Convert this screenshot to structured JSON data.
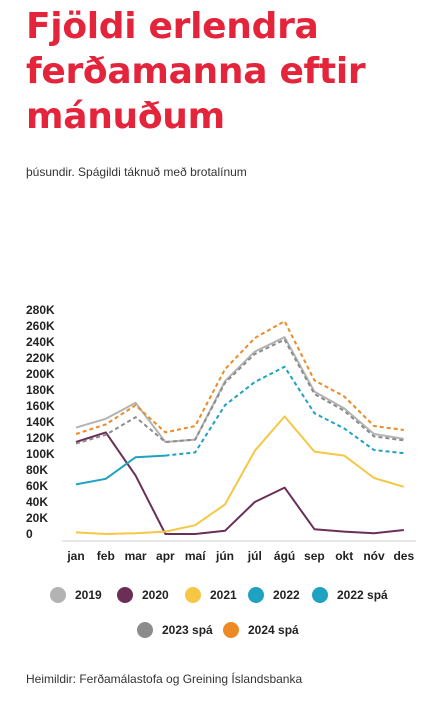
{
  "title": "Fjöldi erlendra ferðamanna eftir mánuðum",
  "subtitle": "þúsundir. Spágildi táknuð með brotalínum",
  "source": "Heimildir: Ferðamálastofa og Greining Íslandsbanka",
  "chart_data": {
    "type": "line",
    "categories": [
      "jan",
      "feb",
      "mar",
      "apr",
      "maí",
      "jún",
      "júl",
      "ágú",
      "sep",
      "okt",
      "nóv",
      "des"
    ],
    "y_ticks": [
      "0",
      "20K",
      "40K",
      "60K",
      "80K",
      "100K",
      "120K",
      "140K",
      "160K",
      "180K",
      "200K",
      "220K",
      "240K",
      "260K",
      "280K"
    ],
    "ylim": [
      0,
      280
    ],
    "grid": false,
    "legend_position": "bottom",
    "series": [
      {
        "name": "2019",
        "color": "#b3b3b3",
        "dashed": false,
        "values": [
          133,
          144,
          164,
          115,
          118,
          191,
          228,
          246,
          178,
          157,
          125,
          119
        ]
      },
      {
        "name": "2020",
        "color": "#6b2f57",
        "dashed": false,
        "values": [
          115,
          127,
          73,
          0,
          0,
          4,
          40,
          58,
          6,
          3,
          1,
          5
        ]
      },
      {
        "name": "2021",
        "color": "#f6c744",
        "dashed": false,
        "values": [
          2,
          0,
          1,
          3,
          11,
          37,
          104,
          147,
          103,
          98,
          70,
          59
        ]
      },
      {
        "name": "2022",
        "color": "#1fa2c0",
        "dashed": false,
        "values": [
          62,
          69,
          96,
          98,
          null,
          null,
          null,
          null,
          null,
          null,
          null,
          null
        ]
      },
      {
        "name": "2022 spá",
        "color": "#1fa2c0",
        "dashed": true,
        "values": [
          null,
          null,
          null,
          98,
          102,
          161,
          190,
          209,
          151,
          132,
          105,
          101
        ]
      },
      {
        "name": "2023 spá",
        "color": "#8c8c8c",
        "dashed": true,
        "values": [
          113,
          124,
          146,
          115,
          118,
          189,
          225,
          243,
          175,
          154,
          122,
          117
        ]
      },
      {
        "name": "2024 spá",
        "color": "#ee8a25",
        "dashed": true,
        "values": [
          125,
          137,
          161,
          127,
          135,
          206,
          245,
          266,
          192,
          172,
          135,
          130
        ]
      }
    ],
    "legend": [
      {
        "name": "2019",
        "color": "#b3b3b3"
      },
      {
        "name": "2020",
        "color": "#6b2f57"
      },
      {
        "name": "2021",
        "color": "#f6c744"
      },
      {
        "name": "2022",
        "color": "#1fa2c0"
      },
      {
        "name": "2022 spá",
        "color": "#1fa2c0"
      },
      {
        "name": "2023 spá",
        "color": "#8c8c8c"
      },
      {
        "name": "2024 spá",
        "color": "#ee8a25"
      }
    ]
  }
}
